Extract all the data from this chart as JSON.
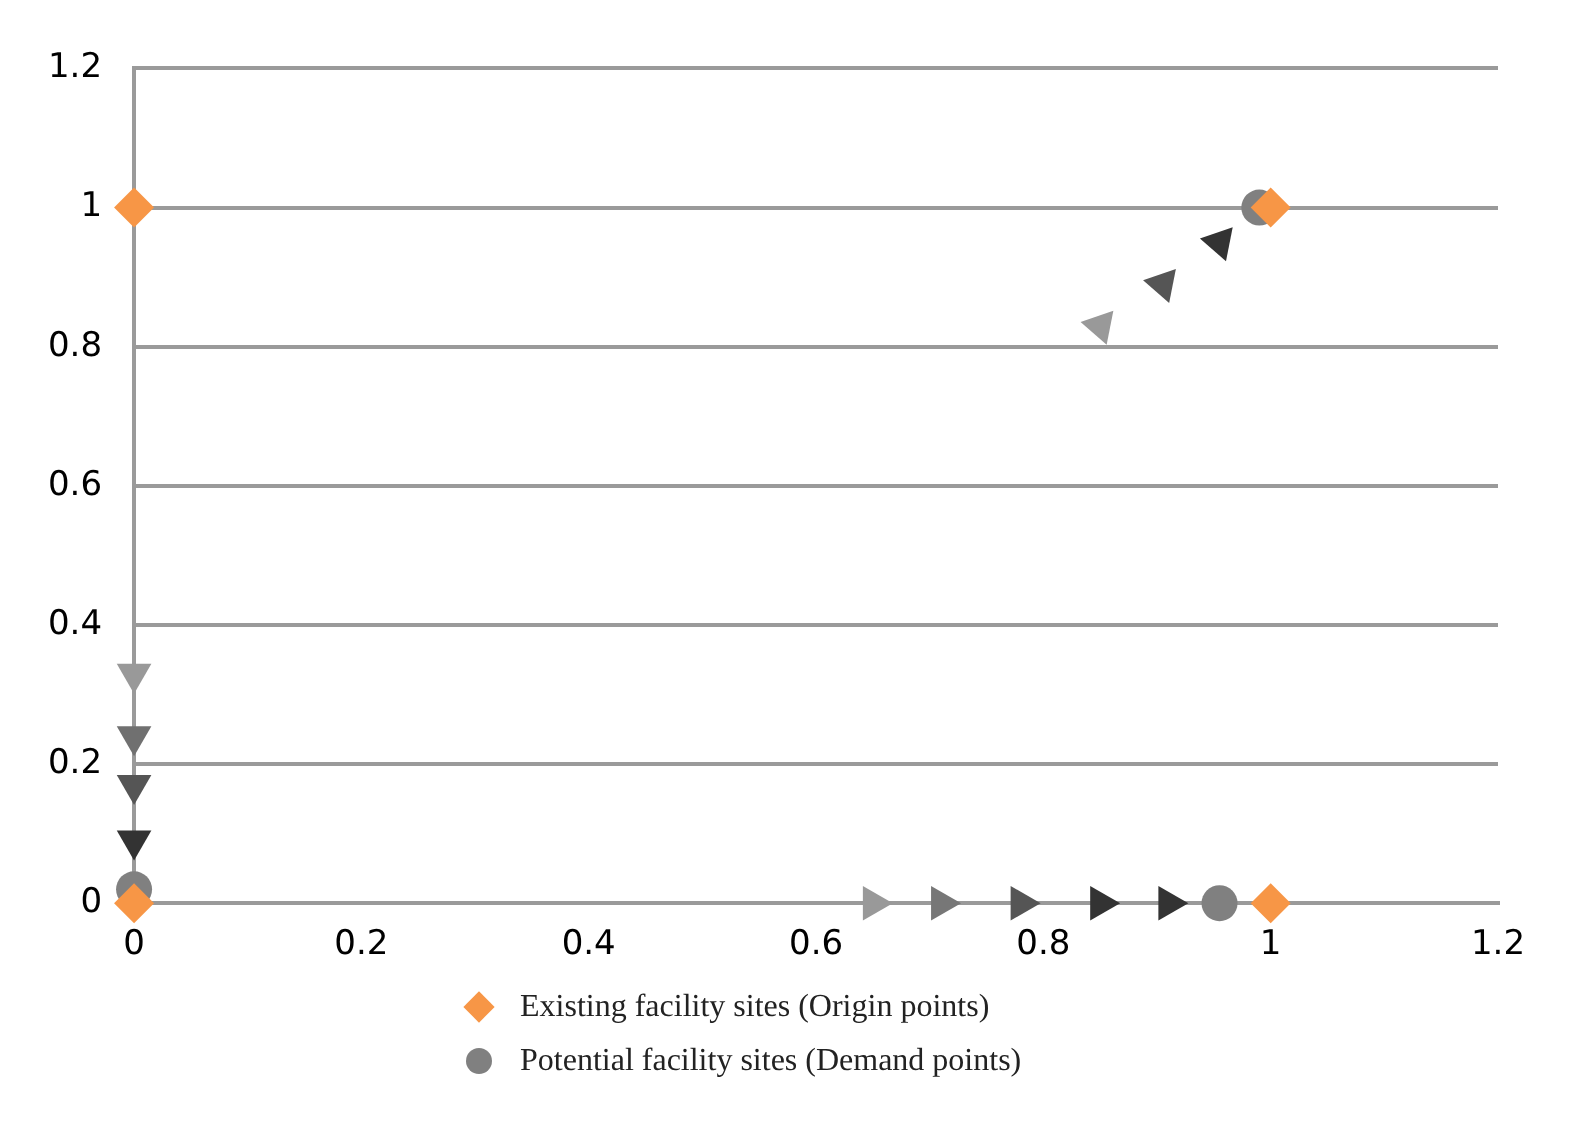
{
  "chart_data": {
    "type": "scatter",
    "xlim": [
      0,
      1.2
    ],
    "ylim": [
      0,
      1.2
    ],
    "xticks": [
      0,
      0.2,
      0.4,
      0.6,
      0.8,
      1,
      1.2
    ],
    "yticks": [
      0,
      0.2,
      0.4,
      0.6,
      0.8,
      1,
      1.2
    ],
    "grid": "y",
    "legend": "bottom",
    "series": [
      {
        "marker": "triangle",
        "x": [
          0,
          0,
          0,
          0
        ],
        "values": [
          0.33,
          0.24,
          0.17,
          0.09
        ],
        "colors": [
          "#999999",
          "#707070",
          "#555555",
          "#333333"
        ]
      },
      {
        "marker": "triangle",
        "x": [
          0.65,
          0.71,
          0.78,
          0.85,
          0.91
        ],
        "values": [
          0,
          0,
          0,
          0,
          0
        ],
        "colors": [
          "#999999",
          "#777777",
          "#555555",
          "#333333",
          "#333333"
        ]
      },
      {
        "marker": "triangle",
        "x": [
          0.85,
          0.905,
          0.955
        ],
        "values": [
          0.83,
          0.89,
          0.95
        ],
        "colors": [
          "#999999",
          "#555555",
          "#333333"
        ]
      },
      {
        "marker": "diamond",
        "name": "Existing facility sites (Origin points)",
        "color": "#f79646",
        "x": [
          0,
          0,
          1,
          1
        ],
        "values": [
          1,
          0,
          1,
          0
        ]
      },
      {
        "marker": "circle",
        "name": "Potential facility sites (Demand points)",
        "color": "#808080",
        "x": [
          0,
          0.99,
          0.955
        ],
        "values": [
          0.02,
          1,
          0
        ]
      }
    ]
  }
}
